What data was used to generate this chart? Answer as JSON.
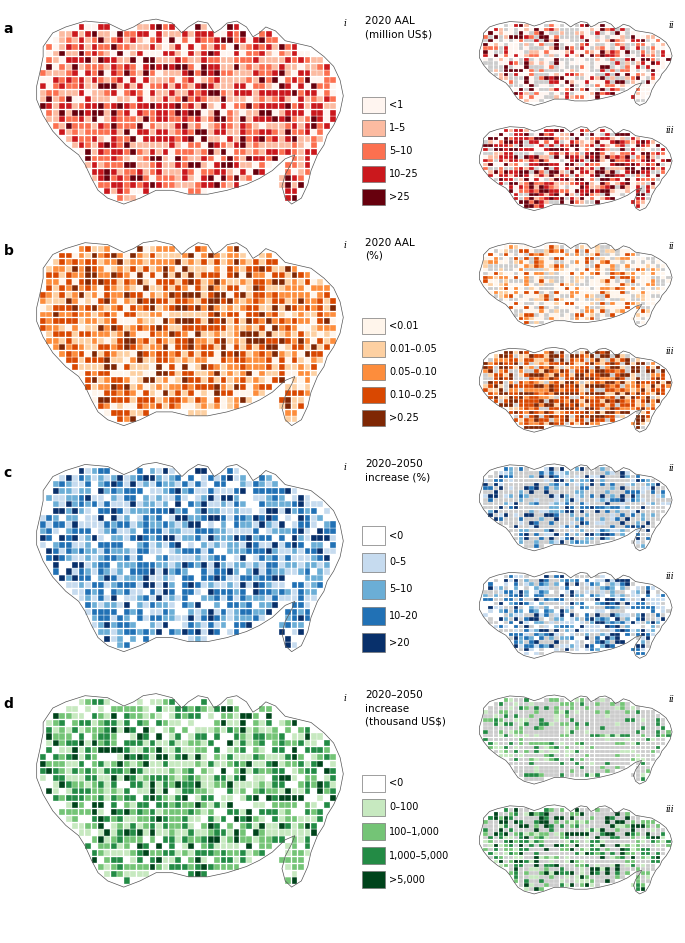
{
  "row_labels": [
    "a",
    "b",
    "c",
    "d"
  ],
  "panels": {
    "a": {
      "legend_title": "2020 AAL\n(million US$)",
      "legend_labels": [
        "<1",
        "1–5",
        "5–10",
        "10–25",
        ">25"
      ],
      "legend_colors": [
        "#FFF5F0",
        "#FCBBA1",
        "#FC7050",
        "#CB181D",
        "#67000D"
      ]
    },
    "b": {
      "legend_title": "2020 AAL\n(%)",
      "legend_labels": [
        "<0.01",
        "0.01–0.05",
        "0.05–0.10",
        "0.10–0.25",
        ">0.25"
      ],
      "legend_colors": [
        "#FFF5EB",
        "#FDD0A2",
        "#FD8D3C",
        "#D94801",
        "#7F2704"
      ]
    },
    "c": {
      "legend_title": "2020–2050\nincrease (%)",
      "legend_labels": [
        "<0",
        "0–5",
        "5–10",
        "10–20",
        ">20"
      ],
      "legend_colors": [
        "#FFFFFF",
        "#C6DBEF",
        "#6BAED6",
        "#2171B5",
        "#08306B"
      ]
    },
    "d": {
      "legend_title": "2020–2050\nincrease\n(thousand US$)",
      "legend_labels": [
        "<0",
        "0–100",
        "100–1,000",
        "1,000–5,000",
        ">5,000"
      ],
      "legend_colors": [
        "#FFFFFF",
        "#C7E9C0",
        "#74C476",
        "#238B45",
        "#00441B"
      ]
    }
  },
  "map_patterns": {
    "a": {
      "i": [
        "#FFF5F0",
        "#FCBBA1",
        "#FCBBA1",
        "#FC7050",
        "#FC7050",
        "#CB181D",
        "#CB181D",
        "#67000D"
      ],
      "ii": [
        "#FFF5F0",
        "#FFF5F0",
        "#FFF5F0",
        "#FCBBA1",
        "#FC7050",
        "#CB181D",
        "#67000D"
      ],
      "iii": [
        "#FCBBA1",
        "#FC7050",
        "#CB181D",
        "#CB181D",
        "#67000D",
        "#67000D",
        "#FFF5F0"
      ]
    },
    "b": {
      "i": [
        "#FFF5EB",
        "#FDD0A2",
        "#FDD0A2",
        "#FD8D3C",
        "#FD8D3C",
        "#D94801",
        "#D94801",
        "#7F2704"
      ],
      "ii": [
        "#FFF5EB",
        "#FFF5EB",
        "#FFF5EB",
        "#FDD0A2",
        "#FD8D3C",
        "#D94801"
      ],
      "iii": [
        "#FDD0A2",
        "#FD8D3C",
        "#D94801",
        "#D94801",
        "#7F2704",
        "#7F2704"
      ]
    },
    "c": {
      "i": [
        "#FFFFFF",
        "#C6DBEF",
        "#C6DBEF",
        "#6BAED6",
        "#6BAED6",
        "#2171B5",
        "#2171B5",
        "#08306B"
      ],
      "ii": [
        "#C6DBEF",
        "#6BAED6",
        "#2171B5",
        "#08306B",
        "#CCCCCC",
        "#CCCCCC"
      ],
      "iii": [
        "#FFFFFF",
        "#C6DBEF",
        "#6BAED6",
        "#2171B5",
        "#08306B",
        "#CCCCCC"
      ]
    },
    "d": {
      "i": [
        "#FFFFFF",
        "#C7E9C0",
        "#C7E9C0",
        "#74C476",
        "#74C476",
        "#238B45",
        "#238B45",
        "#00441B"
      ],
      "ii": [
        "#C7E9C0",
        "#74C476",
        "#238B45",
        "#CCCCCC",
        "#CCCCCC",
        "#CCCCCC"
      ],
      "iii": [
        "#C7E9C0",
        "#74C476",
        "#238B45",
        "#00441B",
        "#CCCCCC",
        "#CCCCCC"
      ]
    }
  },
  "bg_color": "#FFFFFF",
  "legend_title_fontsize": 7.5,
  "legend_label_fontsize": 7,
  "row_label_fontsize": 10,
  "panel_label_fontsize": 7
}
